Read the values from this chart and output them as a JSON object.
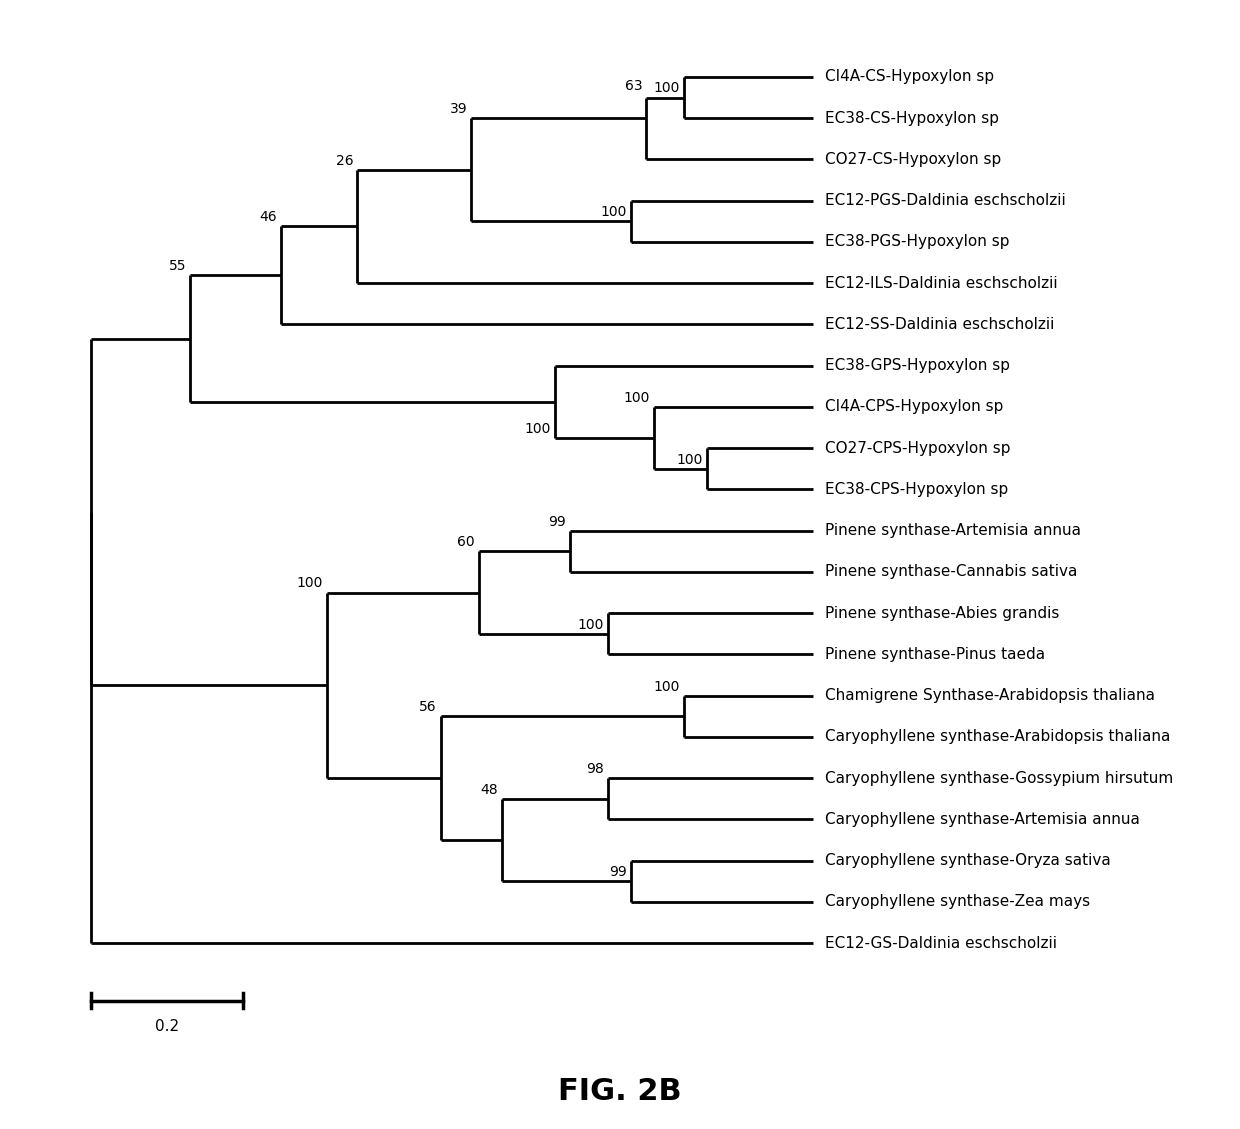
{
  "title": "FIG. 2B",
  "title_fontsize": 22,
  "title_fontweight": "bold",
  "scale_bar_label": "0.2",
  "leaf_fontsize": 11,
  "bootstrap_fontsize": 10,
  "line_width": 2.0,
  "leaves": [
    "CI4A-CS-Hypoxylon sp",
    "EC38-CS-Hypoxylon sp",
    "CO27-CS-Hypoxylon sp",
    "EC12-PGS-Daldinia eschscholzii",
    "EC38-PGS-Hypoxylon sp",
    "EC12-ILS-Daldinia eschscholzii",
    "EC12-SS-Daldinia eschscholzii",
    "EC38-GPS-Hypoxylon sp",
    "CI4A-CPS-Hypoxylon sp",
    "CO27-CPS-Hypoxylon sp",
    "EC38-CPS-Hypoxylon sp",
    "Pinene synthase-Artemisia annua",
    "Pinene synthase-Cannabis sativa",
    "Pinene synthase-Abies grandis",
    "Pinene synthase-Pinus taeda",
    "Chamigrene Synthase-Arabidopsis thaliana",
    "Caryophyllene synthase-Arabidopsis thaliana",
    "Caryophyllene synthase-Gossypium hirsutum",
    "Caryophyllene synthase-Artemisia annua",
    "Caryophyllene synthase-Oryza sativa",
    "Caryophyllene synthase-Zea mays",
    "EC12-GS-Daldinia eschscholzii"
  ],
  "background_color": "#ffffff",
  "line_color": "#000000"
}
